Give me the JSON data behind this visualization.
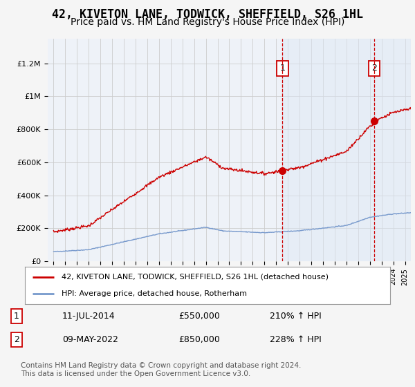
{
  "title": "42, KIVETON LANE, TODWICK, SHEFFIELD, S26 1HL",
  "subtitle": "Price paid vs. HM Land Registry's House Price Index (HPI)",
  "title_fontsize": 12,
  "subtitle_fontsize": 10,
  "ylabel_ticks": [
    "£0",
    "£200K",
    "£400K",
    "£600K",
    "£800K",
    "£1M",
    "£1.2M"
  ],
  "ytick_values": [
    0,
    200000,
    400000,
    600000,
    800000,
    1000000,
    1200000
  ],
  "ylim": [
    0,
    1350000
  ],
  "background_color": "#f5f5f5",
  "plot_bg_color": "#eef2f8",
  "grid_color": "#cccccc",
  "red_line_color": "#cc0000",
  "blue_line_color": "#7799cc",
  "vline_color": "#cc0000",
  "span_color": "#dde8f5",
  "point1_date": "11-JUL-2014",
  "point1_price": 550000,
  "point1_hpi": "210% ↑ HPI",
  "point1_x": 2014.53,
  "point2_date": "09-MAY-2022",
  "point2_price": 850000,
  "point2_hpi": "228% ↑ HPI",
  "point2_x": 2022.36,
  "legend_line1": "42, KIVETON LANE, TODWICK, SHEFFIELD, S26 1HL (detached house)",
  "legend_line2": "HPI: Average price, detached house, Rotherham",
  "footer1": "Contains HM Land Registry data © Crown copyright and database right 2024.",
  "footer2": "This data is licensed under the Open Government Licence v3.0.",
  "xmin": 1994.5,
  "xmax": 2025.5
}
